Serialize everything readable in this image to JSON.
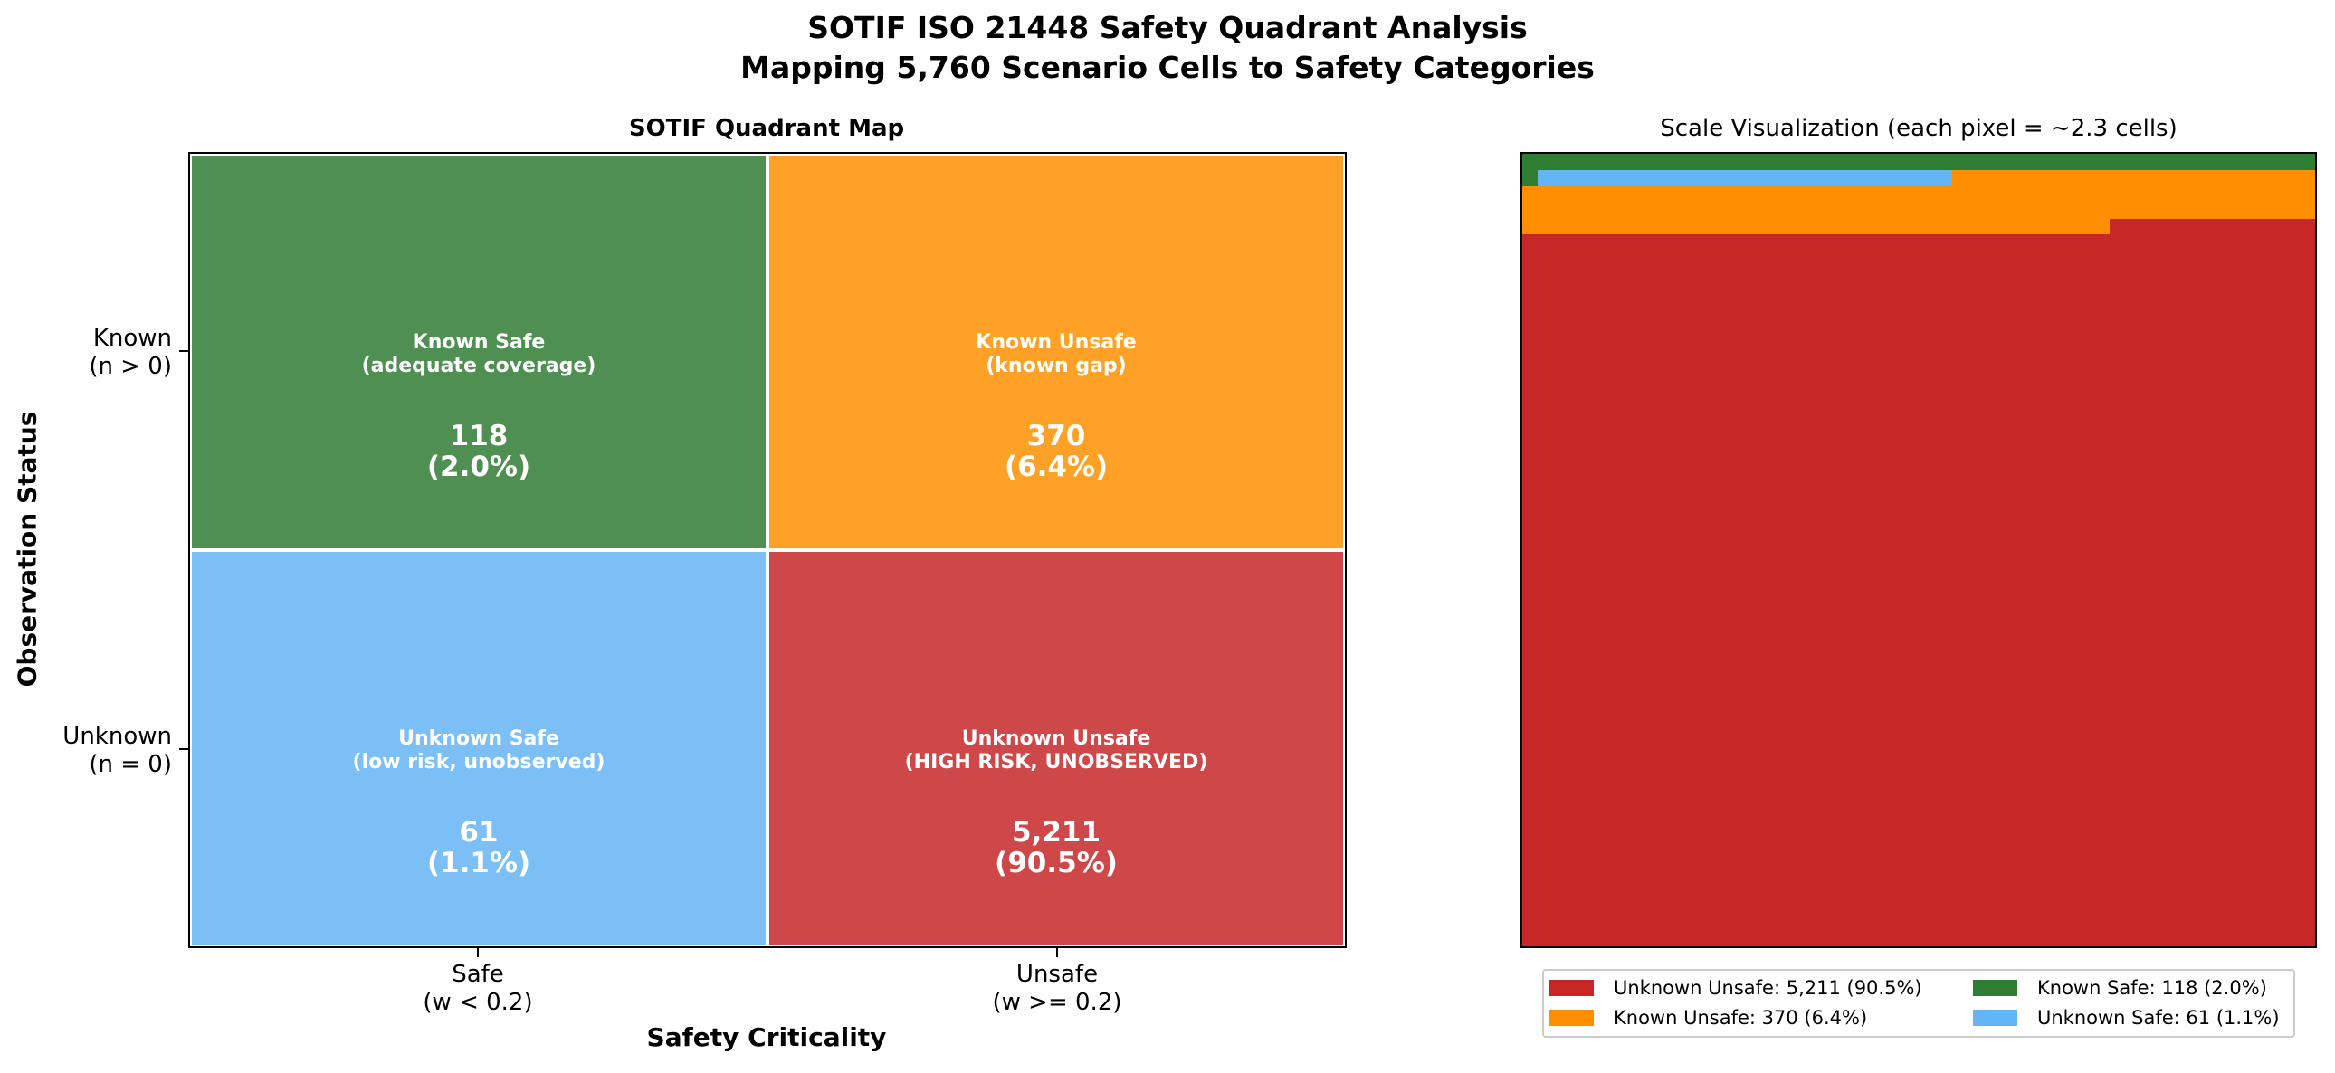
{
  "title_line1": "SOTIF ISO 21448 Safety Quadrant Analysis",
  "title_line2": "Mapping 5,760 Scenario Cells to Safety Categories",
  "chart_data": [
    {
      "type": "heatmap",
      "title": "SOTIF Quadrant Map",
      "xlabel": "Safety Criticality",
      "ylabel": "Observation Status",
      "x_ticks": [
        {
          "line1": "Safe",
          "line2": "(w < 0.2)"
        },
        {
          "line1": "Unsafe",
          "line2": "(w >= 0.2)"
        }
      ],
      "y_ticks": [
        {
          "line1": "Known",
          "line2": "(n > 0)"
        },
        {
          "line1": "Unknown",
          "line2": "(n = 0)"
        }
      ],
      "cells": [
        {
          "row": 0,
          "col": 0,
          "label": "Known Safe",
          "sublabel": "(adequate coverage)",
          "count": 118,
          "count_text": "118",
          "percent_text": "(2.0%)",
          "color": "#4f9052"
        },
        {
          "row": 0,
          "col": 1,
          "label": "Known Unsafe",
          "sublabel": "(known gap)",
          "count": 370,
          "count_text": "370",
          "percent_text": "(6.4%)",
          "color": "#ffa126"
        },
        {
          "row": 1,
          "col": 0,
          "label": "Unknown Safe",
          "sublabel": "(low risk, unobserved)",
          "count": 61,
          "count_text": "61",
          "percent_text": "(1.1%)",
          "color": "#7bbff6"
        },
        {
          "row": 1,
          "col": 1,
          "label": "Unknown Unsafe",
          "sublabel": "(HIGH RISK, UNOBSERVED)",
          "count": 5211,
          "count_text": "5,211",
          "percent_text": "(90.5%)",
          "color": "#cf4849"
        }
      ]
    },
    {
      "type": "area",
      "title": "Scale Visualization (each pixel = ~2.3 cells)",
      "total": 5760,
      "fill_order": [
        "Known Safe",
        "Unknown Safe",
        "Known Unsafe",
        "Unknown Unsafe"
      ],
      "legend": [
        {
          "label": "Unknown Unsafe: 5,211 (90.5%)",
          "color": "#c62828"
        },
        {
          "label": "Known Unsafe: 370 (6.4%)",
          "color": "#ff8f00"
        },
        {
          "label": "Known Safe: 118 (2.0%)",
          "color": "#2e7d32"
        },
        {
          "label": "Unknown Safe: 61 (1.1%)",
          "color": "#64b5f6"
        }
      ],
      "legend_placement": "bottom"
    }
  ]
}
